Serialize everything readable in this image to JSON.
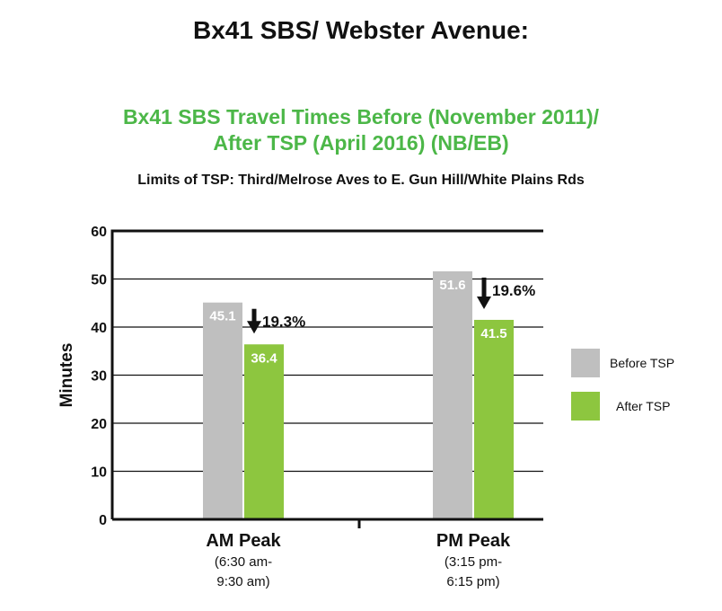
{
  "header": {
    "title": "Bx41 SBS/ Webster Avenue:",
    "subtitle_line1": "Bx41 SBS Travel Times Before (November 2011)/",
    "subtitle_line2": "After TSP (April 2016) (NB/EB)",
    "note": "Limits of TSP: Third/Melrose Aves to E. Gun Hill/White  Plains Rds"
  },
  "chart_data": {
    "type": "bar",
    "title": "Bx41 SBS Travel Times Before (November 2011)/ After TSP (April 2016) (NB/EB)",
    "ylabel": "Minutes",
    "ylim": [
      0,
      60
    ],
    "yticks": [
      0,
      10,
      20,
      30,
      40,
      50,
      60
    ],
    "grid": true,
    "legend": "right",
    "categories": [
      {
        "label": "AM Peak",
        "sub1": "(6:30 am-",
        "sub2": "9:30 am)"
      },
      {
        "label": "PM Peak",
        "sub1": "(3:15 pm-",
        "sub2": "6:15 pm)"
      }
    ],
    "series": [
      {
        "name": "Before TSP",
        "color": "#bfbfbf",
        "values": [
          45.1,
          51.6
        ],
        "labels": [
          "45.1",
          "51.6"
        ]
      },
      {
        "name": "After TSP",
        "color": "#8dc63f",
        "values": [
          36.4,
          41.5
        ],
        "labels": [
          "36.4",
          "41.5"
        ]
      }
    ],
    "annotations": [
      "19.3%",
      "19.6%"
    ]
  }
}
